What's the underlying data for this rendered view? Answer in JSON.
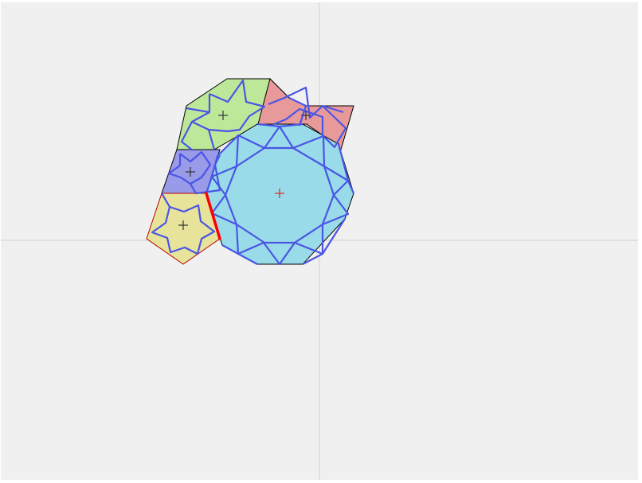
{
  "canvas": {
    "background": "#f0f0f0",
    "axis_color": "#d6d6d6",
    "tile_outline_color": "#000000",
    "pattern_line_color": "#4a55e6",
    "marker_color": "#333333",
    "active_marker_color": "#e02020",
    "selected_edge_color": "#ff0000"
  },
  "tiles": [
    {
      "id": "dodecagon",
      "shape": "dodecagon",
      "fill": "#99dbe8",
      "active": true
    },
    {
      "id": "hexagon-top",
      "shape": "hexagon",
      "fill": "#bde89a",
      "active": false
    },
    {
      "id": "pentagon-bottom",
      "shape": "pentagon",
      "fill": "#e8e39a",
      "active": false
    },
    {
      "id": "rhombus-left",
      "shape": "rhombus",
      "fill": "#999ae8",
      "active": false
    },
    {
      "id": "bowtie-right",
      "shape": "bowtie",
      "fill": "#e89a9a",
      "active": false
    }
  ],
  "icons": {
    "center_marker": "plus-marker-icon"
  }
}
